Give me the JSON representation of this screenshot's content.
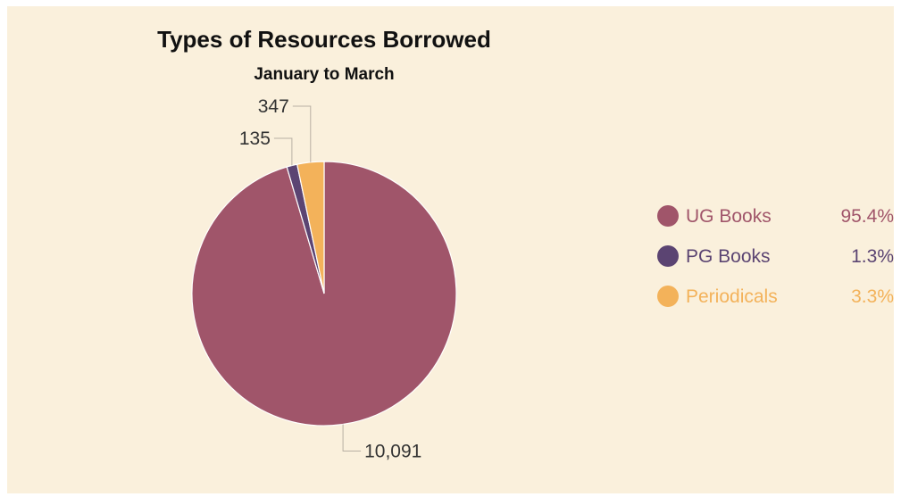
{
  "chart_data": {
    "type": "pie",
    "title": "Types of Resources Borrowed",
    "subtitle": "January to March",
    "slices": [
      {
        "name": "UG Books",
        "value": 10091,
        "value_label": "10,091",
        "percent_label": "95.4%",
        "color": "#a0556a"
      },
      {
        "name": "PG Books",
        "value": 135,
        "value_label": "135",
        "percent_label": "1.3%",
        "color": "#5b4472"
      },
      {
        "name": "Periodicals",
        "value": 347,
        "value_label": "347",
        "percent_label": "3.3%",
        "color": "#f3b25a"
      }
    ],
    "legend_position": "right"
  }
}
